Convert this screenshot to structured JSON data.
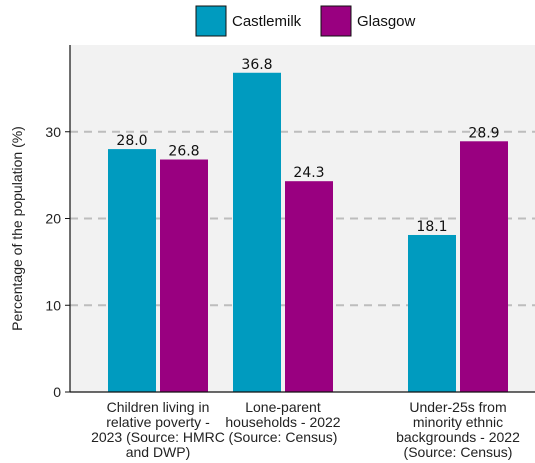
{
  "chart_data": {
    "type": "bar",
    "categories": [
      [
        "Children living in",
        "relative poverty -",
        "2023 (Source: HMRC",
        "and DWP)"
      ],
      [
        "Lone-parent",
        "households - 2022",
        "(Source: Census)"
      ],
      [
        "Under-25s from",
        "minority ethnic",
        "backgrounds - 2022",
        "(Source: Census)"
      ]
    ],
    "series": [
      {
        "name": "Castlemilk",
        "color": "#009bbf",
        "values": [
          28.0,
          36.8,
          18.1
        ],
        "labels": [
          "28.0",
          "36.8",
          "18.1"
        ]
      },
      {
        "name": "Glasgow",
        "color": "#990080",
        "values": [
          26.8,
          24.3,
          28.9
        ],
        "labels": [
          "26.8",
          "24.3",
          "28.9"
        ]
      }
    ],
    "ylabel": "Percentage of the population (%)",
    "ylim": [
      0,
      40
    ],
    "yticks": [
      0,
      10,
      20,
      30
    ],
    "grid": true,
    "legend": "top-center",
    "plot_background": "#f2f2f2",
    "grid_color": "#bdbdbd"
  }
}
